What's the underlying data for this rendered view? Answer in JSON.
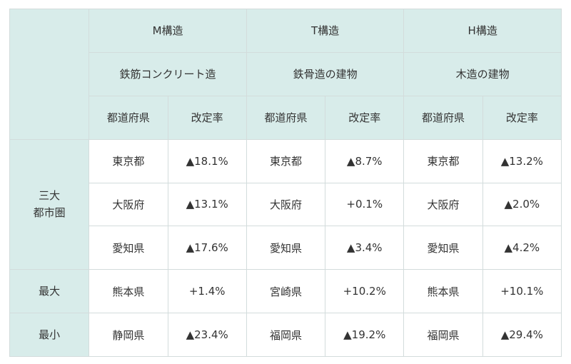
{
  "structures": [
    {
      "code": "M構造",
      "description": "鉄筋コンクリート造"
    },
    {
      "code": "T構造",
      "description": "鉄骨造の建物"
    },
    {
      "code": "H構造",
      "description": "木造の建物"
    }
  ],
  "sub_headers": {
    "prefecture": "都道府県",
    "rate": "改定率"
  },
  "row_groups": {
    "metro_line1": "三大",
    "metro_line2": "都市圏",
    "max": "最大",
    "min": "最小"
  },
  "rows": [
    {
      "cells": [
        [
          "東京都",
          "▲18.1%"
        ],
        [
          "東京都",
          "▲8.7%"
        ],
        [
          "東京都",
          "▲13.2%"
        ]
      ]
    },
    {
      "cells": [
        [
          "大阪府",
          "▲13.1%"
        ],
        [
          "大阪府",
          "+0.1%"
        ],
        [
          "大阪府",
          "▲2.0%"
        ]
      ]
    },
    {
      "cells": [
        [
          "愛知県",
          "▲17.6%"
        ],
        [
          "愛知県",
          "▲3.4%"
        ],
        [
          "愛知県",
          "▲4.2%"
        ]
      ]
    },
    {
      "cells": [
        [
          "熊本県",
          "+1.4%"
        ],
        [
          "宮崎県",
          "+10.2%"
        ],
        [
          "熊本県",
          "+10.1%"
        ]
      ]
    },
    {
      "cells": [
        [
          "静岡県",
          "▲23.4%"
        ],
        [
          "福岡県",
          "▲19.2%"
        ],
        [
          "福岡県",
          "▲29.4%"
        ]
      ]
    }
  ]
}
